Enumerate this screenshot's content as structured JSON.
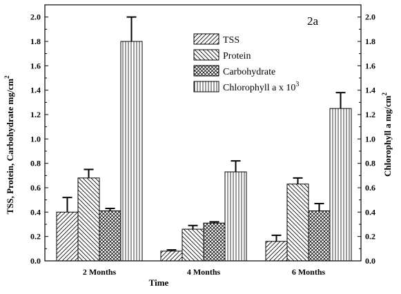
{
  "chart_data": {
    "type": "bar",
    "panel_label": "2a",
    "categories": [
      "2 Months",
      "4 Months",
      "6 Months"
    ],
    "xlabel": "Time",
    "ylabel_left": {
      "main": "TSS, Protein, Carbohydrate mg/cm",
      "sup": "2"
    },
    "ylabel_right": {
      "main": "Chlorophyll a mg/cm",
      "sup": "2"
    },
    "ylim_left": [
      0.0,
      2.1
    ],
    "ylim_right": [
      0.0,
      2.1
    ],
    "yticks_left": [
      "0.0",
      "0.2",
      "0.4",
      "0.6",
      "0.8",
      "1.0",
      "1.2",
      "1.4",
      "1.6",
      "1.8",
      "2.0"
    ],
    "yticks_right": [
      "0.0",
      "0.2",
      "0.4",
      "0.6",
      "0.8",
      "1.0",
      "1.2",
      "1.4",
      "1.6",
      "1.8",
      "2.0"
    ],
    "series": [
      {
        "name": "TSS",
        "pattern": "diag-right",
        "values": [
          0.4,
          0.08,
          0.16
        ],
        "errors": [
          0.12,
          0.01,
          0.05
        ]
      },
      {
        "name": "Protein",
        "pattern": "diag-left",
        "values": [
          0.68,
          0.26,
          0.63
        ],
        "errors": [
          0.07,
          0.03,
          0.05
        ]
      },
      {
        "name": "Carbohydrate",
        "pattern": "crosshatch",
        "values": [
          0.41,
          0.31,
          0.41
        ],
        "errors": [
          0.02,
          0.01,
          0.06
        ]
      },
      {
        "name": "Chlorophyll a x 10",
        "name_sup": "3",
        "pattern": "vertical",
        "values": [
          1.8,
          0.73,
          1.25
        ],
        "errors": [
          0.2,
          0.09,
          0.13
        ]
      }
    ],
    "legend_position": "top-right",
    "grid": false,
    "colors": {
      "bar_stroke": "#000000",
      "fill": "#ffffff",
      "hatch": "#000000"
    }
  }
}
